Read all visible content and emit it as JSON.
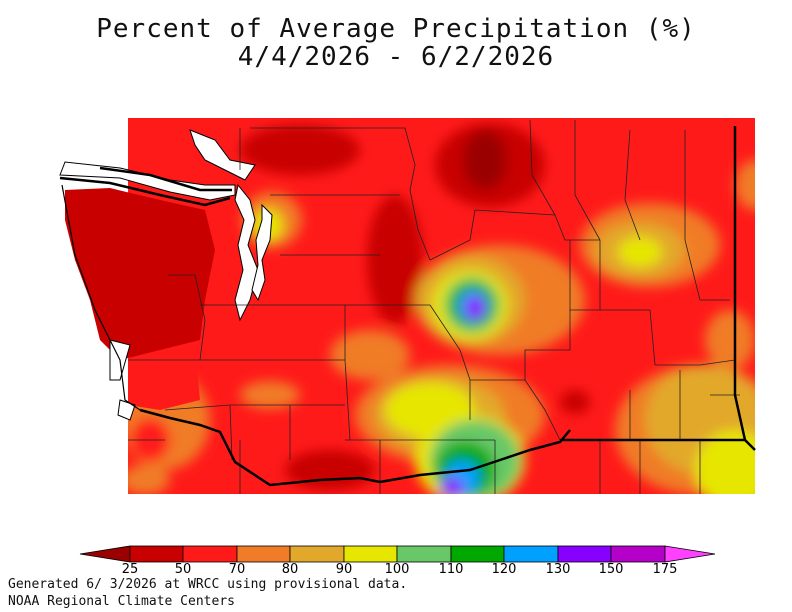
{
  "title": {
    "line1": "Percent of Average Precipitation (%)",
    "line2": "4/4/2026 - 6/2/2026"
  },
  "legend": {
    "labels": [
      "25",
      "50",
      "70",
      "80",
      "90",
      "100",
      "110",
      "120",
      "130",
      "150",
      "175"
    ],
    "colors": [
      "#9b0000",
      "#c80000",
      "#ff1a1a",
      "#f07c28",
      "#e2a82c",
      "#e6e600",
      "#68c868",
      "#00a800",
      "#00a0ff",
      "#8800ff",
      "#b400c8",
      "#ff40ff"
    ]
  },
  "footer": {
    "line1": "Generated 6/ 3/2026 at WRCC using provisional data.",
    "line2": "NOAA Regional Climate Centers"
  }
}
